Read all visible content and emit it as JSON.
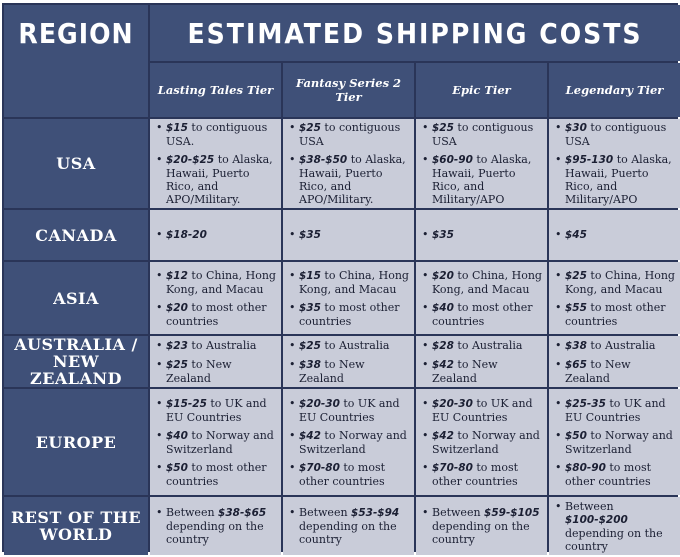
{
  "header": {
    "region": "REGION",
    "title": "ESTIMATED SHIPPING COSTS"
  },
  "tiers": [
    "Lasting Tales Tier",
    "Fantasy Series 2 Tier",
    "Epic Tier",
    "Legendary Tier"
  ],
  "rows": [
    {
      "label_lines": [
        "USA"
      ],
      "cells": [
        [
          {
            "price": "$15",
            "text": " to contiguous USA."
          },
          {
            "price": "$20-$25",
            "text": " to Alaska, Hawaii, Puerto Rico, and APO/Military."
          }
        ],
        [
          {
            "price": "$25",
            "text": " to contiguous USA"
          },
          {
            "price": "$38-$50",
            "text": " to Alaska, Hawaii, Puerto Rico, and APO/Military."
          }
        ],
        [
          {
            "price": "$25",
            "text": " to contiguous USA"
          },
          {
            "price": "$60-90",
            "text": " to Alaska, Hawaii, Puerto Rico, and Military/APO"
          }
        ],
        [
          {
            "price": "$30",
            "text": " to contiguous USA"
          },
          {
            "price": "$95-130",
            "text": " to Alaska, Hawaii, Puerto Rico, and Military/APO"
          }
        ]
      ]
    },
    {
      "label_lines": [
        "CANADA"
      ],
      "cells": [
        [
          {
            "price": "$18-20",
            "text": ""
          }
        ],
        [
          {
            "price": "$35",
            "text": ""
          }
        ],
        [
          {
            "price": "$35",
            "text": ""
          }
        ],
        [
          {
            "price": "$45",
            "text": ""
          }
        ]
      ]
    },
    {
      "label_lines": [
        "ASIA"
      ],
      "cells": [
        [
          {
            "price": "$12",
            "text": " to China, Hong Kong, and Macau"
          },
          {
            "price": "$20",
            "text": " to most other countries"
          }
        ],
        [
          {
            "price": "$15",
            "text": " to China, Hong Kong, and Macau"
          },
          {
            "price": "$35",
            "text": " to most other countries"
          }
        ],
        [
          {
            "price": "$20",
            "text": " to China, Hong Kong, and Macau"
          },
          {
            "price": "$40",
            "text": " to most other countries"
          }
        ],
        [
          {
            "price": "$25",
            "text": " to China, Hong Kong, and Macau"
          },
          {
            "price": "$55",
            "text": " to most other countries"
          }
        ]
      ]
    },
    {
      "label_lines": [
        "AUSTRALIA /",
        "NEW ZEALAND"
      ],
      "cells": [
        [
          {
            "price": "$23",
            "text": " to Australia"
          },
          {
            "price": "$25",
            "text": " to New Zealand"
          }
        ],
        [
          {
            "price": "$25",
            "text": " to Australia"
          },
          {
            "price": "$38",
            "text": " to New Zealand"
          }
        ],
        [
          {
            "price": "$28",
            "text": " to Australia"
          },
          {
            "price": "$42",
            "text": " to New Zealand"
          }
        ],
        [
          {
            "price": "$38",
            "text": " to Australia"
          },
          {
            "price": "$65",
            "text": " to New Zealand"
          }
        ]
      ]
    },
    {
      "label_lines": [
        "EUROPE"
      ],
      "cells": [
        [
          {
            "price": "$15-25",
            "text": " to UK and EU Countries"
          },
          {
            "price": "$40",
            "text": " to Norway and Switzerland"
          },
          {
            "price": "$50",
            "text": " to most other countries"
          }
        ],
        [
          {
            "price": "$20-30",
            "text": " to UK and EU Countries"
          },
          {
            "price": "$42",
            "text": " to Norway and Switzerland"
          },
          {
            "price": "$70-80",
            "text": " to most other countries"
          }
        ],
        [
          {
            "price": "$20-30",
            "text": " to UK and EU Countries"
          },
          {
            "price": "$42",
            "text": " to Norway and Switzerland"
          },
          {
            "price": "$70-80",
            "text": " to most other countries"
          }
        ],
        [
          {
            "price": "$25-35",
            "text": " to UK and EU Countries"
          },
          {
            "price": "$50",
            "text": " to Norway and Switzerland"
          },
          {
            "price": "$80-90",
            "text": " to most other countries"
          }
        ]
      ]
    },
    {
      "label_lines": [
        "REST OF THE",
        "WORLD"
      ],
      "cells": [
        [
          {
            "prefix": "Between ",
            "price": "$38-$65",
            "text": " depending on the country"
          }
        ],
        [
          {
            "prefix": "Between ",
            "price": "$53-$94",
            "text": " depending on the country"
          }
        ],
        [
          {
            "prefix": "Between ",
            "price": "$59-$105",
            "text": " depending on the country"
          }
        ],
        [
          {
            "prefix": "Between ",
            "price": "$100-$200",
            "text": " depending on the country"
          }
        ]
      ]
    }
  ]
}
